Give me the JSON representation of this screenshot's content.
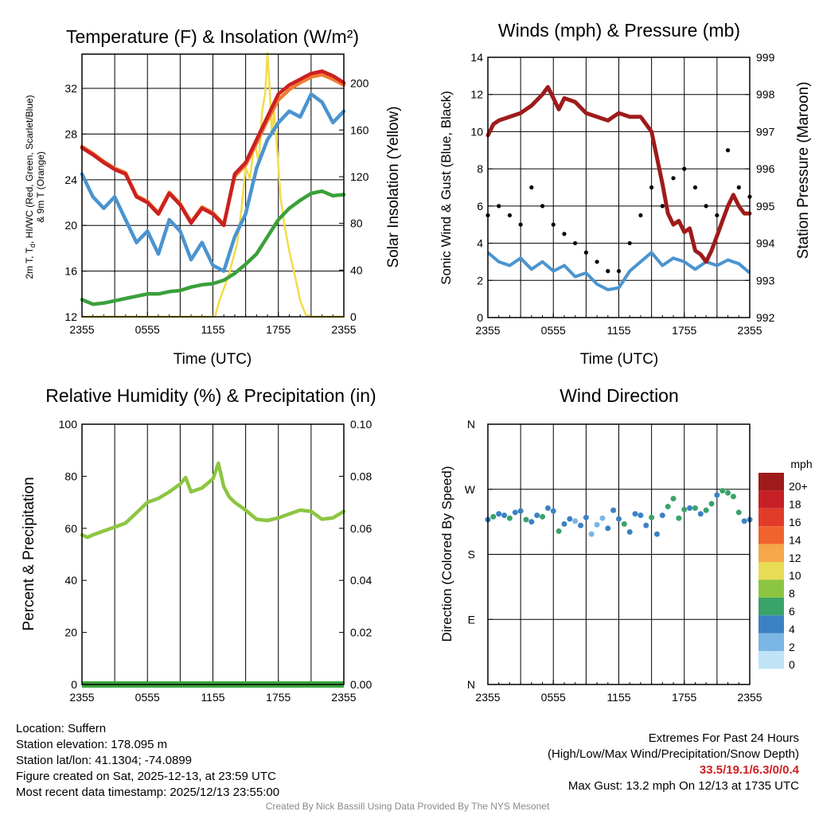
{
  "panels": {
    "temp": {
      "title": "Temperature (F) & Insolation (W/m²)",
      "ylabel_left": [
        "2m T, T",
        "d",
        ", HI/WC (Red, Green, Scarlet/Blue)",
        "& 9m T (Orange)"
      ],
      "ylabel_right": "Solar Insolation (Yellow)",
      "xlabel": "Time (UTC)"
    },
    "wind": {
      "title": "Winds (mph) & Pressure (mb)",
      "ylabel_left": "Sonic Wind & Gust (Blue, Black)",
      "ylabel_right": "Station Pressure (Maroon)",
      "xlabel": "Time (UTC)"
    },
    "rh": {
      "title": "Relative Humidity (%) & Precipitation (in)",
      "ylabel_left": "Percent & Precipitation"
    },
    "dir": {
      "title": "Wind Direction",
      "ylabel_left": "Direction (Colored By Speed)",
      "legend_title": "mph"
    }
  },
  "chart_data": [
    {
      "type": "line",
      "title": "Temperature (F) & Insolation (W/m²)",
      "xlabel": "Time (UTC)",
      "x_ticks": [
        "2355",
        "0555",
        "1155",
        "1755",
        "2355"
      ],
      "x_range_hours": [
        0,
        24
      ],
      "ylim": [
        12,
        35
      ],
      "y_ticks": [
        12,
        16,
        20,
        24,
        28,
        32
      ],
      "y2lim": [
        0,
        225
      ],
      "y2_ticks": [
        0,
        40,
        80,
        120,
        160,
        200
      ],
      "series": [
        {
          "name": "2m Temperature",
          "color": "#cc2020",
          "axis": "left",
          "x": [
            0,
            1,
            2,
            3,
            4,
            5,
            6,
            7,
            8,
            9,
            10,
            11,
            12,
            13,
            14,
            15,
            16,
            17,
            18,
            19,
            20,
            21,
            22,
            23,
            24
          ],
          "y": [
            26.8,
            26.2,
            25.5,
            24.9,
            24.5,
            22.5,
            22.0,
            21.0,
            22.8,
            21.8,
            20.2,
            21.5,
            21.0,
            20.0,
            24.5,
            25.5,
            27.5,
            29.5,
            31.5,
            32.3,
            32.8,
            33.3,
            33.5,
            33.1,
            32.5
          ]
        },
        {
          "name": "9m Temperature",
          "color": "#f07a30",
          "axis": "left",
          "x": [
            0,
            1,
            2,
            3,
            4,
            5,
            6,
            7,
            8,
            9,
            10,
            11,
            12,
            13,
            14,
            15,
            16,
            17,
            18,
            19,
            20,
            21,
            22,
            23,
            24
          ],
          "y": [
            26.9,
            26.3,
            25.6,
            25.0,
            24.6,
            22.6,
            22.1,
            21.1,
            22.9,
            21.9,
            20.3,
            21.6,
            21.1,
            20.1,
            24.3,
            25.3,
            27.2,
            29.2,
            31.0,
            31.9,
            32.5,
            33.0,
            33.2,
            32.8,
            32.3
          ]
        },
        {
          "name": "Dewpoint",
          "color": "#3aa03a",
          "axis": "left",
          "x": [
            0,
            1,
            2,
            3,
            4,
            5,
            6,
            7,
            8,
            9,
            10,
            11,
            12,
            13,
            14,
            15,
            16,
            17,
            18,
            19,
            20,
            21,
            22,
            23,
            24
          ],
          "y": [
            13.5,
            13.1,
            13.2,
            13.4,
            13.6,
            13.8,
            14.0,
            14.0,
            14.2,
            14.3,
            14.6,
            14.8,
            14.9,
            15.2,
            15.8,
            16.6,
            17.5,
            19.0,
            20.5,
            21.5,
            22.2,
            22.8,
            23.0,
            22.6,
            22.7
          ]
        },
        {
          "name": "Wind Chill",
          "color": "#4b94cf",
          "axis": "left",
          "x": [
            0,
            1,
            2,
            3,
            4,
            5,
            6,
            7,
            8,
            9,
            10,
            11,
            12,
            13,
            14,
            15,
            16,
            17,
            18,
            19,
            20,
            21,
            22,
            23,
            24
          ],
          "y": [
            24.5,
            22.5,
            21.5,
            22.5,
            20.5,
            18.5,
            19.5,
            17.5,
            20.5,
            19.5,
            17.0,
            18.5,
            16.5,
            16.0,
            19.0,
            21.0,
            25.0,
            27.5,
            29.0,
            30.0,
            29.5,
            31.5,
            30.8,
            29.0,
            30.0
          ]
        },
        {
          "name": "Solar Insolation",
          "color": "#f2dc4a",
          "axis": "right",
          "x": [
            0,
            12.2,
            12.6,
            13.0,
            13.4,
            13.8,
            14.2,
            14.6,
            15.0,
            15.4,
            15.8,
            16.2,
            16.5,
            16.8,
            17.0,
            17.2,
            17.4,
            17.6,
            17.9,
            18.2,
            18.6,
            19.0,
            19.5,
            20.0,
            20.5,
            21.0,
            24
          ],
          "y": [
            0,
            0,
            14,
            24,
            34,
            48,
            62,
            90,
            128,
            118,
            150,
            132,
            175,
            192,
            226,
            196,
            156,
            176,
            142,
            102,
            76,
            56,
            36,
            14,
            2,
            0,
            0
          ]
        }
      ]
    },
    {
      "type": "line",
      "title": "Winds (mph) & Pressure (mb)",
      "xlabel": "Time (UTC)",
      "x_ticks": [
        "2355",
        "0555",
        "1155",
        "1755",
        "2355"
      ],
      "x_range_hours": [
        0,
        24
      ],
      "ylim": [
        0,
        14
      ],
      "y_ticks": [
        0,
        2,
        4,
        6,
        8,
        10,
        12,
        14
      ],
      "y2lim": [
        992,
        999
      ],
      "y2_ticks": [
        992,
        993,
        994,
        995,
        996,
        997,
        998,
        999
      ],
      "series": [
        {
          "name": "Station Pressure",
          "color": "#9e1b1b",
          "axis": "right",
          "x": [
            0,
            0.5,
            1,
            2,
            3,
            4,
            5,
            5.5,
            6,
            6.5,
            7,
            8,
            9,
            10,
            11,
            11.5,
            12,
            13,
            14,
            15,
            16,
            16.5,
            17,
            17.5,
            18,
            18.5,
            19,
            19.5,
            20,
            20.5,
            21,
            21.5,
            22,
            22.5,
            23,
            23.5,
            24
          ],
          "y": [
            996.9,
            997.2,
            997.3,
            997.4,
            997.5,
            997.7,
            998.0,
            998.2,
            997.9,
            997.6,
            997.9,
            997.8,
            997.5,
            997.4,
            997.3,
            997.4,
            997.5,
            997.4,
            997.4,
            997.0,
            995.6,
            994.8,
            994.5,
            994.6,
            994.3,
            994.4,
            993.8,
            993.7,
            993.5,
            993.8,
            994.2,
            994.6,
            995.0,
            995.3,
            995.0,
            994.8,
            994.8
          ]
        },
        {
          "name": "Sonic Wind",
          "color": "#4b94cf",
          "axis": "left",
          "x": [
            0,
            1,
            2,
            3,
            4,
            5,
            6,
            7,
            8,
            9,
            10,
            11,
            12,
            13,
            14,
            15,
            16,
            17,
            18,
            19,
            20,
            21,
            22,
            23,
            24
          ],
          "y": [
            3.5,
            3.0,
            2.8,
            3.2,
            2.6,
            3.0,
            2.5,
            2.8,
            2.2,
            2.4,
            1.8,
            1.5,
            1.6,
            2.5,
            3.0,
            3.5,
            2.8,
            3.2,
            3.0,
            2.6,
            3.0,
            2.8,
            3.1,
            2.9,
            2.4
          ]
        },
        {
          "name": "Gust",
          "color": "#000000",
          "axis": "left",
          "style": "scatter",
          "x": [
            0,
            1,
            2,
            3,
            4,
            5,
            6,
            7,
            8,
            9,
            10,
            11,
            12,
            13,
            14,
            15,
            16,
            17,
            18,
            19,
            20,
            21,
            22,
            23,
            24
          ],
          "y": [
            5.5,
            6.0,
            5.5,
            5.0,
            7.0,
            6.0,
            5.0,
            4.5,
            4.0,
            3.5,
            3.0,
            2.5,
            2.5,
            4.0,
            5.5,
            7.0,
            6.0,
            7.5,
            8.0,
            7.0,
            6.0,
            5.5,
            9.0,
            7.0,
            6.5
          ]
        }
      ]
    },
    {
      "type": "line",
      "title": "Relative Humidity (%) & Precipitation (in)",
      "ylabel": "Percent & Precipitation",
      "x_ticks": [
        "2355",
        "0555",
        "1155",
        "1755",
        "2355"
      ],
      "x_range_hours": [
        0,
        24
      ],
      "ylim": [
        0,
        100
      ],
      "y_ticks": [
        0,
        20,
        40,
        60,
        80,
        100
      ],
      "y2lim": [
        0,
        0.1
      ],
      "y2_ticks": [
        "0.00",
        "0.02",
        "0.04",
        "0.06",
        "0.08",
        "0.10"
      ],
      "series": [
        {
          "name": "Relative Humidity",
          "color": "#8cc641",
          "axis": "left",
          "x": [
            0,
            0.5,
            1,
            2,
            3,
            4,
            5,
            6,
            7,
            8,
            9,
            9.5,
            10,
            11,
            12,
            12.5,
            13,
            13.5,
            14,
            15,
            16,
            17,
            18,
            19,
            20,
            21,
            22,
            23,
            24
          ],
          "y": [
            57.5,
            56.5,
            57.5,
            59.0,
            60.5,
            62.0,
            66.0,
            70.0,
            71.5,
            74.0,
            77.0,
            79.5,
            74.0,
            75.5,
            79.0,
            85.0,
            76.0,
            72.0,
            70.0,
            67.0,
            63.5,
            63.0,
            64.0,
            65.5,
            67.0,
            66.5,
            63.5,
            64.0,
            66.5
          ]
        },
        {
          "name": "Precipitation",
          "color": "#3ba53b",
          "axis": "right",
          "x": [
            0,
            24
          ],
          "y": [
            0,
            0
          ]
        }
      ]
    },
    {
      "type": "scatter",
      "title": "Wind Direction",
      "ylabel": "Direction (Colored By Speed)",
      "x_ticks": [
        "2355",
        "0555",
        "1155",
        "1755",
        "2355"
      ],
      "x_range_hours": [
        0,
        24
      ],
      "y_ticks": [
        "N",
        "E",
        "S",
        "W",
        "N"
      ],
      "y_range_deg": [
        0,
        360
      ],
      "series": [
        {
          "name": "Wind direction",
          "x": [
            0,
            0.5,
            1,
            1.5,
            2,
            2.5,
            3,
            3.5,
            4,
            4.5,
            5,
            5.5,
            6,
            6.5,
            7,
            7.5,
            8,
            8.5,
            9,
            9.5,
            10,
            10.5,
            11,
            11.5,
            12,
            12.5,
            13,
            13.5,
            14,
            14.5,
            15,
            15.5,
            16,
            16.5,
            17,
            17.5,
            18,
            18.5,
            19,
            19.5,
            20,
            20.5,
            21,
            21.5,
            22,
            22.5,
            23,
            23.5,
            24
          ],
          "y": [
            228,
            232,
            236,
            234,
            230,
            238,
            240,
            228,
            225,
            234,
            232,
            244,
            240,
            212,
            222,
            229,
            226,
            220,
            231,
            208,
            221,
            230,
            216,
            241,
            229,
            222,
            211,
            236,
            234,
            220,
            231,
            208,
            234,
            246,
            257,
            230,
            242,
            244,
            244,
            236,
            241,
            250,
            262,
            268,
            265,
            260,
            238,
            226,
            228
          ],
          "speed_mph": [
            3,
            4,
            3,
            2,
            4,
            3,
            3,
            4,
            2,
            3,
            4,
            3,
            2,
            4,
            3,
            2,
            1,
            2,
            2,
            1,
            1,
            1,
            2,
            2,
            3,
            4,
            3,
            2,
            2,
            3,
            4,
            3,
            3,
            4,
            4,
            5,
            4,
            3,
            4,
            3,
            5,
            4,
            3,
            5,
            4,
            5,
            4,
            3,
            3
          ]
        }
      ],
      "colorbar": {
        "title": "mph",
        "labels": [
          "20+",
          "18",
          "16",
          "14",
          "12",
          "10",
          "8",
          "6",
          "4",
          "2",
          "0"
        ],
        "colors": [
          "#9e1b1b",
          "#c62026",
          "#e23b2a",
          "#f0622e",
          "#f5a74a",
          "#e8dc54",
          "#8cc641",
          "#3aa36a",
          "#3b82c4",
          "#7bb6e4",
          "#c0e4f6"
        ]
      }
    }
  ],
  "station": {
    "location": "Location: Suffern",
    "elevation": "Station elevation: 178.095 m",
    "latlon": "Station lat/lon: 41.1304; -74.0899",
    "created": "Figure created on Sat, 2025-12-13, at 23:59 UTC",
    "recent": "Most recent data timestamp: 2025/12/13 23:55:00"
  },
  "extremes": {
    "title": "Extremes For Past 24 Hours",
    "legend": "(High/Low/Max Wind/Precipitation/Snow Depth)",
    "values": "33.5/19.1/6.3/0/0.4",
    "gust": "Max Gust: 13.2 mph On 12/13 at 1735 UTC"
  },
  "credit": "Created By Nick Bassill Using Data Provided By The NYS Mesonet"
}
